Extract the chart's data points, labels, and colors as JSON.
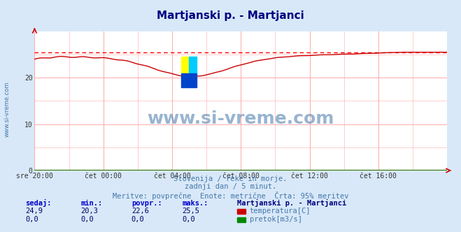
{
  "title": "Martjanski p. - Martjanci",
  "title_color": "#000080",
  "bg_color": "#d8e8f8",
  "plot_bg_color": "#ffffff",
  "grid_color": "#ffaaaa",
  "x_labels": [
    "sre 20:00",
    "čet 00:00",
    "čet 04:00",
    "čet 08:00",
    "čet 12:00",
    "čet 16:00"
  ],
  "x_ticks_norm": [
    0.0,
    0.1667,
    0.3333,
    0.5,
    0.6667,
    0.8333
  ],
  "ylim": [
    0,
    30
  ],
  "y_ticks": [
    0,
    10,
    20
  ],
  "temp_color": "#cc0000",
  "pretok_color": "#008800",
  "dashed_line_color": "#ff0000",
  "dashed_line_y": 25.5,
  "watermark": "www.si-vreme.com",
  "watermark_color": "#4477aa",
  "left_label": "www.si-vreme.com",
  "subtitle1": "Slovenija / reke in morje.",
  "subtitle2": "zadnji dan / 5 minut.",
  "subtitle3": "Meritve: povprečne  Enote: metrične  Črta: 95% meritev",
  "subtitle_color": "#4477aa",
  "legend_title": "Martjanski p. - Martjanci",
  "legend_title_color": "#000080",
  "legend_color": "#4477aa",
  "stats_label_color": "#0000cc",
  "stats_value_color": "#000066",
  "sedaj": "24,9",
  "min_val": "20,3",
  "povpr": "22,6",
  "maks": "25,5",
  "sedaj2": "0,0",
  "min_val2": "0,0",
  "povpr2": "0,0",
  "maks2": "0,0"
}
